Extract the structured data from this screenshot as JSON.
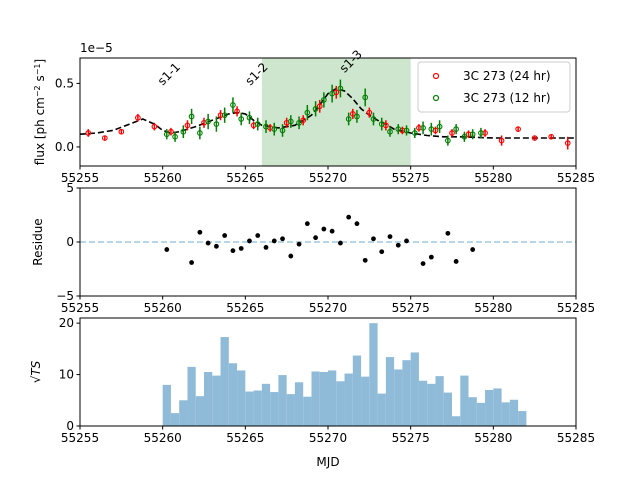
{
  "chart_data": [
    {
      "type": "scatter",
      "panel": "flux",
      "ylabel": "flux [ph cm$^{-2}$ s$^{-1}$]",
      "scale_label": "1e−5",
      "xlim": [
        55255,
        55285
      ],
      "ylim": [
        -0.15,
        0.7
      ],
      "xticks": [
        55255,
        55260,
        55265,
        55270,
        55275,
        55280,
        55285
      ],
      "yticks": [
        0.0,
        0.5
      ],
      "ytick_labels": [
        "0.0",
        "0.5"
      ],
      "shaded_region": [
        55266,
        55275
      ],
      "shaded_color": "#cde6cd",
      "annotations": [
        {
          "text": "s1-1",
          "x": 55260.0,
          "y": 0.48
        },
        {
          "text": "s1-2",
          "x": 55265.3,
          "y": 0.48
        },
        {
          "text": "s1-3",
          "x": 55271.0,
          "y": 0.58
        }
      ],
      "legend": {
        "position": "top-right",
        "entries": [
          "3C 273 (24 hr)",
          "3C 273 (12 hr)"
        ]
      },
      "series": [
        {
          "name": "3C 273 (24 hr)",
          "color": "#ff0000",
          "points": [
            {
              "x": 55255.5,
              "y": 0.11,
              "e": 0.03
            },
            {
              "x": 55256.5,
              "y": 0.07,
              "e": 0.02
            },
            {
              "x": 55257.5,
              "y": 0.12,
              "e": 0.02
            },
            {
              "x": 55258.5,
              "y": 0.23,
              "e": 0.03
            },
            {
              "x": 55259.5,
              "y": 0.16,
              "e": 0.03
            },
            {
              "x": 55260.5,
              "y": 0.12,
              "e": 0.03
            },
            {
              "x": 55261.5,
              "y": 0.17,
              "e": 0.04
            },
            {
              "x": 55262.5,
              "y": 0.19,
              "e": 0.04
            },
            {
              "x": 55263.5,
              "y": 0.25,
              "e": 0.04
            },
            {
              "x": 55264.5,
              "y": 0.28,
              "e": 0.04
            },
            {
              "x": 55265.5,
              "y": 0.17,
              "e": 0.03
            },
            {
              "x": 55266.5,
              "y": 0.15,
              "e": 0.03
            },
            {
              "x": 55267.5,
              "y": 0.19,
              "e": 0.04
            },
            {
              "x": 55268.5,
              "y": 0.21,
              "e": 0.04
            },
            {
              "x": 55269.5,
              "y": 0.32,
              "e": 0.05
            },
            {
              "x": 55270.5,
              "y": 0.43,
              "e": 0.05
            },
            {
              "x": 55271.5,
              "y": 0.26,
              "e": 0.04
            },
            {
              "x": 55272.5,
              "y": 0.27,
              "e": 0.04
            },
            {
              "x": 55273.5,
              "y": 0.17,
              "e": 0.04
            },
            {
              "x": 55274.5,
              "y": 0.13,
              "e": 0.03
            },
            {
              "x": 55275.5,
              "y": 0.15,
              "e": 0.03
            },
            {
              "x": 55276.5,
              "y": 0.13,
              "e": 0.03
            },
            {
              "x": 55277.5,
              "y": 0.11,
              "e": 0.03
            },
            {
              "x": 55278.5,
              "y": 0.1,
              "e": 0.03
            },
            {
              "x": 55279.5,
              "y": 0.11,
              "e": 0.03
            },
            {
              "x": 55280.5,
              "y": 0.05,
              "e": 0.04
            },
            {
              "x": 55281.5,
              "y": 0.14,
              "e": 0.02
            },
            {
              "x": 55282.5,
              "y": 0.07,
              "e": 0.02
            },
            {
              "x": 55283.5,
              "y": 0.08,
              "e": 0.02
            },
            {
              "x": 55284.5,
              "y": 0.03,
              "e": 0.05
            }
          ]
        },
        {
          "name": "3C 273 (12 hr)",
          "color": "#008000",
          "points": [
            {
              "x": 55260.25,
              "y": 0.1,
              "e": 0.04
            },
            {
              "x": 55260.75,
              "y": 0.08,
              "e": 0.04
            },
            {
              "x": 55261.25,
              "y": 0.12,
              "e": 0.05
            },
            {
              "x": 55261.75,
              "y": 0.24,
              "e": 0.06
            },
            {
              "x": 55262.25,
              "y": 0.11,
              "e": 0.05
            },
            {
              "x": 55262.75,
              "y": 0.2,
              "e": 0.06
            },
            {
              "x": 55263.25,
              "y": 0.18,
              "e": 0.06
            },
            {
              "x": 55263.75,
              "y": 0.25,
              "e": 0.06
            },
            {
              "x": 55264.25,
              "y": 0.33,
              "e": 0.06
            },
            {
              "x": 55264.75,
              "y": 0.22,
              "e": 0.05
            },
            {
              "x": 55265.25,
              "y": 0.23,
              "e": 0.05
            },
            {
              "x": 55265.75,
              "y": 0.18,
              "e": 0.05
            },
            {
              "x": 55266.25,
              "y": 0.16,
              "e": 0.05
            },
            {
              "x": 55266.75,
              "y": 0.14,
              "e": 0.05
            },
            {
              "x": 55267.25,
              "y": 0.13,
              "e": 0.05
            },
            {
              "x": 55267.75,
              "y": 0.2,
              "e": 0.05
            },
            {
              "x": 55268.25,
              "y": 0.19,
              "e": 0.05
            },
            {
              "x": 55268.75,
              "y": 0.27,
              "e": 0.06
            },
            {
              "x": 55269.25,
              "y": 0.3,
              "e": 0.06
            },
            {
              "x": 55269.75,
              "y": 0.37,
              "e": 0.06
            },
            {
              "x": 55270.25,
              "y": 0.42,
              "e": 0.07
            },
            {
              "x": 55270.75,
              "y": 0.46,
              "e": 0.07
            },
            {
              "x": 55271.25,
              "y": 0.22,
              "e": 0.05
            },
            {
              "x": 55271.75,
              "y": 0.24,
              "e": 0.05
            },
            {
              "x": 55272.25,
              "y": 0.39,
              "e": 0.07
            },
            {
              "x": 55272.75,
              "y": 0.22,
              "e": 0.05
            },
            {
              "x": 55273.25,
              "y": 0.18,
              "e": 0.05
            },
            {
              "x": 55273.75,
              "y": 0.12,
              "e": 0.04
            },
            {
              "x": 55274.25,
              "y": 0.14,
              "e": 0.04
            },
            {
              "x": 55274.75,
              "y": 0.13,
              "e": 0.04
            },
            {
              "x": 55275.25,
              "y": 0.11,
              "e": 0.04
            },
            {
              "x": 55275.75,
              "y": 0.15,
              "e": 0.05
            },
            {
              "x": 55276.25,
              "y": 0.14,
              "e": 0.05
            },
            {
              "x": 55276.75,
              "y": 0.16,
              "e": 0.05
            },
            {
              "x": 55277.25,
              "y": 0.05,
              "e": 0.04
            },
            {
              "x": 55277.75,
              "y": 0.14,
              "e": 0.04
            },
            {
              "x": 55278.25,
              "y": 0.08,
              "e": 0.04
            },
            {
              "x": 55278.75,
              "y": 0.1,
              "e": 0.04
            },
            {
              "x": 55279.25,
              "y": 0.11,
              "e": 0.04
            }
          ]
        }
      ],
      "model_curve": {
        "color": "#000000",
        "style": "dashed",
        "points": [
          [
            55255,
            0.1
          ],
          [
            55256,
            0.11
          ],
          [
            55257,
            0.13
          ],
          [
            55258,
            0.18
          ],
          [
            55258.8,
            0.22
          ],
          [
            55259.5,
            0.18
          ],
          [
            55260,
            0.13
          ],
          [
            55260.5,
            0.11
          ],
          [
            55261,
            0.12
          ],
          [
            55262,
            0.16
          ],
          [
            55263,
            0.21
          ],
          [
            55264,
            0.26
          ],
          [
            55264.5,
            0.27
          ],
          [
            55265,
            0.26
          ],
          [
            55265.5,
            0.21
          ],
          [
            55266,
            0.17
          ],
          [
            55267,
            0.15
          ],
          [
            55268,
            0.17
          ],
          [
            55269,
            0.25
          ],
          [
            55269.5,
            0.33
          ],
          [
            55270,
            0.42
          ],
          [
            55270.5,
            0.46
          ],
          [
            55271,
            0.44
          ],
          [
            55271.5,
            0.38
          ],
          [
            55272,
            0.3
          ],
          [
            55272.5,
            0.25
          ],
          [
            55273,
            0.21
          ],
          [
            55273.5,
            0.18
          ],
          [
            55274,
            0.14
          ],
          [
            55275,
            0.11
          ],
          [
            55276,
            0.09
          ],
          [
            55277,
            0.08
          ],
          [
            55278,
            0.08
          ],
          [
            55280,
            0.07
          ],
          [
            55282,
            0.07
          ],
          [
            55285,
            0.07
          ]
        ]
      }
    },
    {
      "type": "scatter",
      "panel": "residue",
      "ylabel": "Residue",
      "xlim": [
        55255,
        55285
      ],
      "ylim": [
        -5,
        5
      ],
      "xticks": [
        55255,
        55260,
        55265,
        55270,
        55275,
        55280,
        55285
      ],
      "yticks": [
        -5,
        0,
        5
      ],
      "ytick_labels": [
        "−5",
        "0",
        "5"
      ],
      "reference_line": {
        "y": 0,
        "color": "#9ecae1",
        "style": "dashed"
      },
      "points": [
        {
          "x": 55260.25,
          "y": -0.7
        },
        {
          "x": 55261.75,
          "y": -1.9
        },
        {
          "x": 55262.25,
          "y": 0.9
        },
        {
          "x": 55262.75,
          "y": -0.1
        },
        {
          "x": 55263.25,
          "y": -0.4
        },
        {
          "x": 55263.75,
          "y": 0.6
        },
        {
          "x": 55264.25,
          "y": -0.8
        },
        {
          "x": 55264.75,
          "y": -0.6
        },
        {
          "x": 55265.25,
          "y": 0.1
        },
        {
          "x": 55265.75,
          "y": 0.6
        },
        {
          "x": 55266.25,
          "y": -0.5
        },
        {
          "x": 55266.75,
          "y": 0.1
        },
        {
          "x": 55267.25,
          "y": 0.3
        },
        {
          "x": 55267.75,
          "y": -1.3
        },
        {
          "x": 55268.25,
          "y": -0.2
        },
        {
          "x": 55268.75,
          "y": 1.7
        },
        {
          "x": 55269.25,
          "y": 0.4
        },
        {
          "x": 55269.75,
          "y": 1.2
        },
        {
          "x": 55270.25,
          "y": 1.0
        },
        {
          "x": 55270.75,
          "y": -0.1
        },
        {
          "x": 55271.25,
          "y": 2.3
        },
        {
          "x": 55271.75,
          "y": 1.7
        },
        {
          "x": 55272.25,
          "y": -1.7
        },
        {
          "x": 55272.75,
          "y": 0.3
        },
        {
          "x": 55273.25,
          "y": -0.9
        },
        {
          "x": 55273.75,
          "y": 0.5
        },
        {
          "x": 55274.25,
          "y": -0.3
        },
        {
          "x": 55274.75,
          "y": 0.1
        },
        {
          "x": 55275.75,
          "y": -2.0
        },
        {
          "x": 55276.25,
          "y": -1.4
        },
        {
          "x": 55277.25,
          "y": 0.8
        },
        {
          "x": 55277.75,
          "y": -1.8
        },
        {
          "x": 55278.75,
          "y": -0.7
        }
      ]
    },
    {
      "type": "bar",
      "panel": "ts",
      "ylabel": "√TS",
      "xlabel": "MJD",
      "xlim": [
        55255,
        55285
      ],
      "ylim": [
        0,
        21
      ],
      "xticks": [
        55255,
        55260,
        55265,
        55270,
        55275,
        55280,
        55285
      ],
      "yticks": [
        0,
        10,
        20
      ],
      "ytick_labels": [
        "0",
        "10",
        "20"
      ],
      "bar_color": "#8fbbd9",
      "bin_width": 0.5,
      "bin_start": 55260.0,
      "values": [
        8,
        2.5,
        5,
        11.5,
        5.8,
        10.5,
        9.8,
        17.3,
        12.2,
        10.8,
        6.7,
        6.9,
        8.2,
        6.6,
        9.9,
        6.2,
        8.5,
        5.7,
        10.6,
        10.5,
        10.8,
        8.7,
        10.2,
        13.7,
        9.6,
        20,
        6.3,
        13.4,
        11,
        12.8,
        14.3,
        8.8,
        8.2,
        9.7,
        6.5,
        1.9,
        9.8,
        5.6,
        4.5,
        7,
        7.3,
        4.6,
        5.1,
        2.9
      ]
    }
  ]
}
